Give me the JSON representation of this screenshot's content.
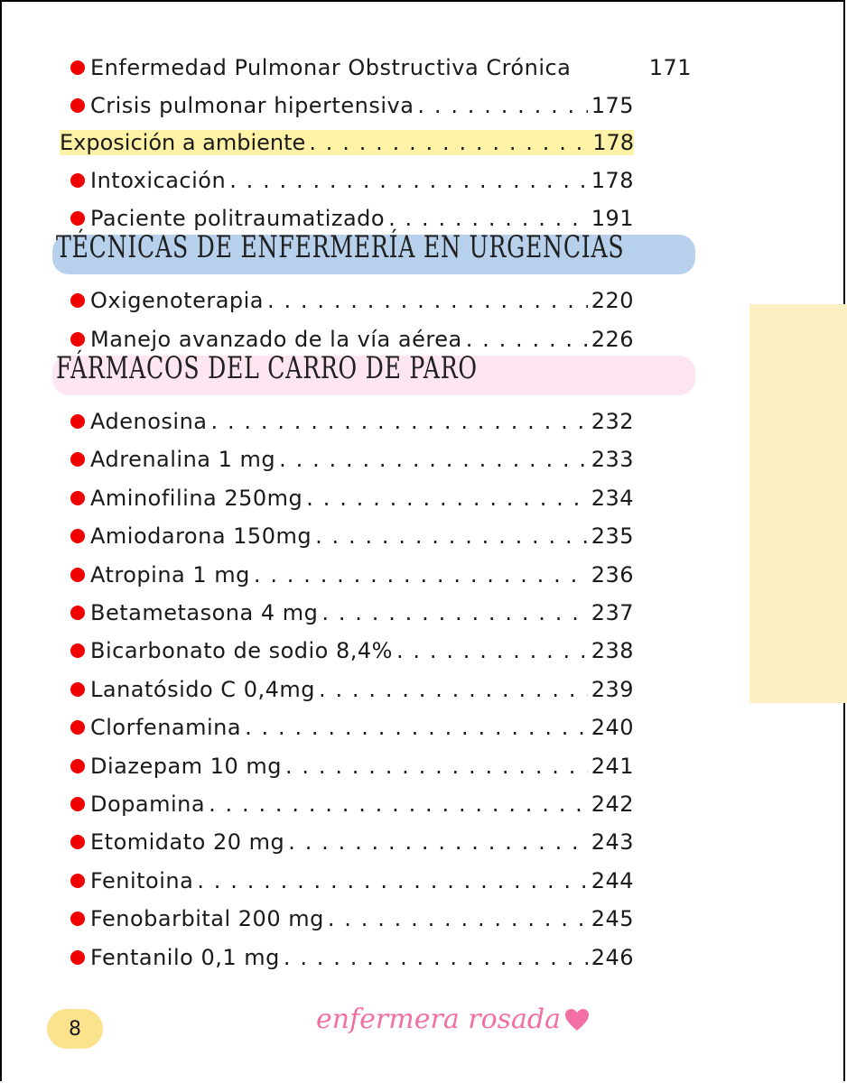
{
  "toc_top": [
    {
      "title": "Enfermedad Pulmonar Obstructiva Crónica",
      "page": "171"
    },
    {
      "title": "Crisis pulmonar hipertensiva",
      "page": "175"
    }
  ],
  "subheading": {
    "title": "Exposición a ambiente",
    "page": "178"
  },
  "toc_exposure": [
    {
      "title": "Intoxicación",
      "page": "178"
    },
    {
      "title": "Paciente politraumatizado",
      "page": "191"
    }
  ],
  "section_techniques": {
    "title": "TÉCNICAS DE ENFERMERÍA EN URGENCIAS",
    "color": "#b7d1ec"
  },
  "toc_techniques": [
    {
      "title": "Oxigenoterapia",
      "page": "220"
    },
    {
      "title": "Manejo avanzado de la vía aérea",
      "page": "226"
    }
  ],
  "section_drugs": {
    "title": "FÁRMACOS DEL CARRO DE PARO",
    "color": "#fde6f2"
  },
  "toc_drugs": [
    {
      "title": "Adenosina",
      "page": "232"
    },
    {
      "title": "Adrenalina 1 mg",
      "page": "233"
    },
    {
      "title": "Aminofilina 250mg",
      "page": "234"
    },
    {
      "title": "Amiodarona 150mg",
      "page": "235"
    },
    {
      "title": "Atropina 1 mg",
      "page": "236"
    },
    {
      "title": "Betametasona 4 mg",
      "page": "237"
    },
    {
      "title": "Bicarbonato de sodio 8,4%",
      "page": "238"
    },
    {
      "title": "Lanatósido C 0,4mg",
      "page": "239"
    },
    {
      "title": "Clorfenamina",
      "page": "240"
    },
    {
      "title": "Diazepam 10 mg",
      "page": "241"
    },
    {
      "title": "Dopamina",
      "page": "242"
    },
    {
      "title": "Etomidato 20 mg",
      "page": "243"
    },
    {
      "title": "Fenitoina",
      "page": "244"
    },
    {
      "title": "Fenobarbital 200 mg",
      "page": "245"
    },
    {
      "title": "Fentanilo 0,1 mg",
      "page": "246"
    }
  ],
  "footer": {
    "page_number": "8",
    "brand": "enfermera rosada",
    "brand_icon": "heart-icon"
  },
  "colors": {
    "bullet": "#f00000",
    "highlight": "#fdf2a6",
    "side_tab": "#fdf0c4",
    "page_badge": "#fbe38e",
    "brand": "#f26fa3"
  }
}
